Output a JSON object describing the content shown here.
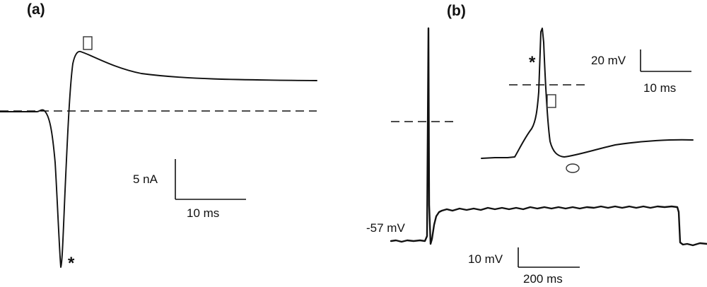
{
  "panel_a": {
    "label": "(a)",
    "scale_y": "5 nA",
    "scale_x": "10 ms",
    "marker_peak": "*",
    "marker_box": "▯"
  },
  "panel_b": {
    "label": "(b)",
    "resting_label": "-57 mV",
    "scale_y": "10 mV",
    "scale_x": "200 ms",
    "inset": {
      "scale_y": "20 mV",
      "scale_x": "10 ms",
      "marker_peak": "*",
      "marker_box": "▯",
      "marker_circle": "◯"
    }
  },
  "colors": {
    "trace": "#111111",
    "background": "#ffffff"
  }
}
